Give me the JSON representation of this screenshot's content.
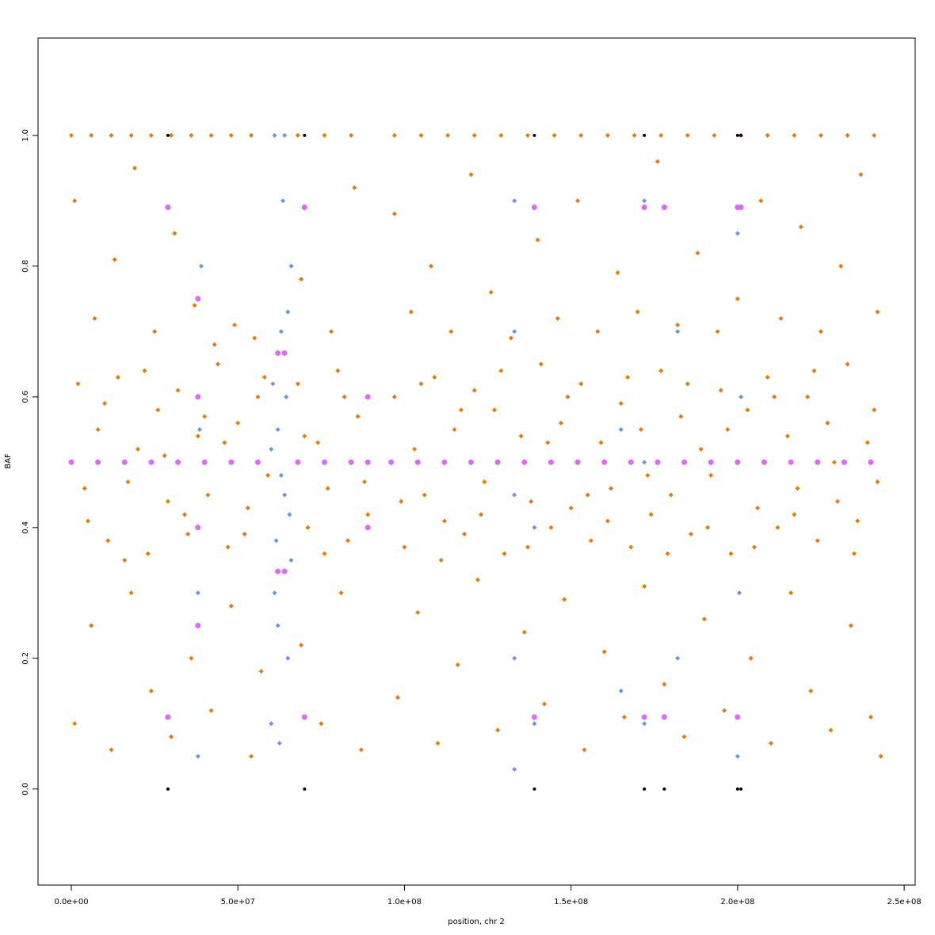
{
  "chart_data": {
    "type": "scatter",
    "xlabel": "position, chr 2",
    "ylabel": "BAF",
    "xlim": [
      -10000000.0,
      253300000.0
    ],
    "ylim": [
      -0.147,
      1.149
    ],
    "xticks": [
      {
        "value": 0,
        "label": "0.0e+00"
      },
      {
        "value": 50000000.0,
        "label": "5.0e+07"
      },
      {
        "value": 100000000.0,
        "label": "1.0e+08"
      },
      {
        "value": 150000000.0,
        "label": "1.5e+08"
      },
      {
        "value": 200000000.0,
        "label": "2.0e+08"
      },
      {
        "value": 250000000.0,
        "label": "2.5e+08"
      }
    ],
    "yticks": [
      {
        "value": 0,
        "label": "0.0"
      },
      0.2,
      0.4,
      0.6,
      0.8,
      {
        "value": 1,
        "label": "1.0"
      }
    ],
    "series": [
      {
        "color": "#ee7600",
        "marker": "diamond",
        "x": [
          2000000.0,
          5000000.0,
          8000000.0,
          11000000.0,
          14000000.0,
          17000000.0,
          20000000.0,
          23000000.0,
          26000000.0,
          29000000.0,
          32000000.0,
          35000000.0,
          38000000.0,
          41000000.0,
          44000000.0,
          47000000.0,
          50000000.0,
          53000000.0,
          56000000.0,
          59000000.0,
          68000000.0,
          71000000.0,
          74000000.0,
          77000000.0,
          80000000.0,
          83000000.0,
          86000000.0,
          89000000.0,
          97000000.0,
          100000000.0,
          103000000.0,
          106000000.0,
          109000000.0,
          112000000.0,
          115000000.0,
          118000000.0,
          121000000.0,
          124000000.0,
          127000000.0,
          130000000.0,
          135000000.0,
          138000000.0,
          141000000.0,
          144000000.0,
          147000000.0,
          150000000.0,
          153000000.0,
          156000000.0,
          159000000.0,
          162000000.0,
          165000000.0,
          168000000.0,
          171000000.0,
          174000000.0,
          177000000.0,
          180000000.0,
          183000000.0,
          186000000.0,
          189000000.0,
          192000000.0,
          195000000.0,
          198000000.0,
          203000000.0,
          206000000.0,
          209000000.0,
          212000000.0,
          215000000.0,
          218000000.0,
          221000000.0,
          224000000.0,
          227000000.0,
          230000000.0,
          233000000.0,
          236000000.0,
          239000000.0,
          242000000.0,
          4000000.0,
          10000000.0,
          16000000.0,
          22000000.0,
          28000000.0,
          34000000.0,
          40000000.0,
          46000000.0,
          52000000.0,
          58000000.0,
          70000000.0,
          76000000.0,
          82000000.0,
          88000000.0,
          99000000.0,
          105000000.0,
          111000000.0,
          117000000.0,
          123000000.0,
          129000000.0,
          137000000.0,
          143000000.0,
          149000000.0,
          155000000.0,
          161000000.0,
          167000000.0,
          173000000.0,
          179000000.0,
          185000000.0,
          191000000.0,
          197000000.0,
          205000000.0,
          211000000.0,
          217000000.0,
          223000000.0,
          229000000.0,
          235000000.0,
          241000000.0,
          1000000.0,
          6000000.0,
          12000000.0,
          18000000.0,
          24000000.0,
          30000000.0,
          36000000.0,
          42000000.0,
          48000000.0,
          54000000.0,
          57000000.0,
          69000000.0,
          75000000.0,
          81000000.0,
          87000000.0,
          98000000.0,
          104000000.0,
          110000000.0,
          116000000.0,
          122000000.0,
          128000000.0,
          136000000.0,
          142000000.0,
          148000000.0,
          154000000.0,
          160000000.0,
          166000000.0,
          172000000.0,
          178000000.0,
          184000000.0,
          190000000.0,
          196000000.0,
          204000000.0,
          210000000.0,
          216000000.0,
          222000000.0,
          228000000.0,
          234000000.0,
          240000000.0,
          243000000.0,
          1000000.0,
          7000000.0,
          13000000.0,
          19000000.0,
          25000000.0,
          31000000.0,
          37000000.0,
          43000000.0,
          49000000.0,
          55000000.0,
          69000000.0,
          78000000.0,
          85000000.0,
          97000000.0,
          102000000.0,
          108000000.0,
          114000000.0,
          120000000.0,
          126000000.0,
          132000000.0,
          140000000.0,
          146000000.0,
          152000000.0,
          158000000.0,
          164000000.0,
          170000000.0,
          176000000.0,
          182000000.0,
          188000000.0,
          194000000.0,
          200000000.0,
          207000000.0,
          213000000.0,
          219000000.0,
          225000000.0,
          231000000.0,
          237000000.0,
          242000000.0,
          0,
          6000000.0,
          12000000.0,
          18000000.0,
          24000000.0,
          30000000.0,
          36000000.0,
          42000000.0,
          48000000.0,
          54000000.0,
          68000000.0,
          76000000.0,
          84000000.0,
          97000000.0,
          105000000.0,
          113000000.0,
          121000000.0,
          129000000.0,
          137000000.0,
          145000000.0,
          153000000.0,
          161000000.0,
          169000000.0,
          177000000.0,
          185000000.0,
          193000000.0,
          201000000.0,
          209000000.0,
          217000000.0,
          225000000.0,
          233000000.0,
          241000000.0
        ],
        "y": [
          0.62,
          0.41,
          0.55,
          0.38,
          0.63,
          0.47,
          0.52,
          0.36,
          0.58,
          0.44,
          0.61,
          0.39,
          0.54,
          0.45,
          0.65,
          0.37,
          0.56,
          0.43,
          0.6,
          0.48,
          0.62,
          0.4,
          0.53,
          0.46,
          0.64,
          0.38,
          0.57,
          0.42,
          0.6,
          0.37,
          0.52,
          0.45,
          0.63,
          0.41,
          0.55,
          0.39,
          0.61,
          0.47,
          0.58,
          0.36,
          0.54,
          0.44,
          0.65,
          0.4,
          0.56,
          0.43,
          0.62,
          0.38,
          0.53,
          0.46,
          0.59,
          0.37,
          0.55,
          0.42,
          0.64,
          0.45,
          0.57,
          0.39,
          0.52,
          0.48,
          0.61,
          0.36,
          0.58,
          0.43,
          0.63,
          0.4,
          0.54,
          0.46,
          0.6,
          0.38,
          0.56,
          0.44,
          0.65,
          0.41,
          0.53,
          0.47,
          0.46,
          0.59,
          0.35,
          0.64,
          0.51,
          0.42,
          0.57,
          0.53,
          0.39,
          0.63,
          0.54,
          0.36,
          0.6,
          0.47,
          0.44,
          0.62,
          0.35,
          0.58,
          0.42,
          0.64,
          0.37,
          0.53,
          0.6,
          0.45,
          0.41,
          0.63,
          0.48,
          0.36,
          0.62,
          0.4,
          0.55,
          0.37,
          0.6,
          0.42,
          0.64,
          0.5,
          0.36,
          0.58,
          0.1,
          0.25,
          0.06,
          0.3,
          0.15,
          0.08,
          0.2,
          0.12,
          0.28,
          0.05,
          0.18,
          0.22,
          0.1,
          0.3,
          0.06,
          0.14,
          0.27,
          0.07,
          0.19,
          0.32,
          0.09,
          0.24,
          0.13,
          0.29,
          0.06,
          0.21,
          0.11,
          0.31,
          0.16,
          0.08,
          0.26,
          0.12,
          0.2,
          0.07,
          0.3,
          0.15,
          0.09,
          0.25,
          0.11,
          0.05,
          0.9,
          0.72,
          0.81,
          0.95,
          0.7,
          0.85,
          0.74,
          0.68,
          0.71,
          0.69,
          0.78,
          0.7,
          0.92,
          0.88,
          0.73,
          0.8,
          0.7,
          0.94,
          0.76,
          0.69,
          0.84,
          0.72,
          0.9,
          0.7,
          0.79,
          0.73,
          0.96,
          0.71,
          0.82,
          0.7,
          0.75,
          0.9,
          0.72,
          0.86,
          0.7,
          0.8,
          0.94,
          0.73,
          1,
          1,
          1,
          1,
          1,
          1,
          1,
          1,
          1,
          1,
          1,
          1,
          1,
          1,
          1,
          1,
          1,
          1,
          1,
          1,
          1,
          1,
          1,
          1,
          1,
          1,
          1,
          1,
          1,
          1,
          1,
          1
        ]
      },
      {
        "color": "#6495ed",
        "marker": "diamond",
        "x": [
          60000000.0,
          61000000.0,
          62000000.0,
          63000000.0,
          64000000.0,
          65000000.0,
          66000000.0,
          60500000.0,
          61500000.0,
          62500000.0,
          63500000.0,
          64500000.0,
          65500000.0,
          61000000.0,
          64000000.0,
          62000000.0,
          63000000.0,
          65000000.0,
          60000000.0,
          66000000.0,
          38000000.0,
          38000000.0,
          38500000.0,
          39000000.0,
          133000000.0,
          133000000.0,
          133000000.0,
          133000000.0,
          133000000.0,
          200000000.0,
          200500000.0,
          201000000.0,
          200000000.0,
          172000000.0,
          172000000.0,
          172000000.0,
          139000000.0,
          139000000.0,
          182000000.0,
          182000000.0,
          165000000.0,
          165000000.0
        ],
        "y": [
          0.1,
          0.3,
          0.55,
          0.7,
          0.45,
          0.2,
          0.8,
          0.62,
          0.38,
          0.07,
          0.9,
          0.6,
          0.42,
          1,
          1,
          0.25,
          0.48,
          0.73,
          0.52,
          0.35,
          0.05,
          0.3,
          0.55,
          0.8,
          0.03,
          0.2,
          0.45,
          0.7,
          0.9,
          0.05,
          0.3,
          0.6,
          0.85,
          0.1,
          0.5,
          0.9,
          0.1,
          0.4,
          0.2,
          0.7,
          0.15,
          0.55
        ]
      },
      {
        "color": "#e066ff",
        "marker": "circle",
        "x": [
          0,
          8000000.0,
          16000000.0,
          24000000.0,
          32000000.0,
          40000000.0,
          48000000.0,
          56000000.0,
          68000000.0,
          76000000.0,
          84000000.0,
          89000000.0,
          96000000.0,
          104000000.0,
          112000000.0,
          120000000.0,
          128000000.0,
          136000000.0,
          144000000.0,
          152000000.0,
          160000000.0,
          168000000.0,
          176000000.0,
          184000000.0,
          192000000.0,
          200000000.0,
          208000000.0,
          216000000.0,
          224000000.0,
          232000000.0,
          240000000.0,
          29000000.0,
          29000000.0,
          38000000.0,
          38000000.0,
          38000000.0,
          38000000.0,
          62000000.0,
          64000000.0,
          62000000.0,
          64000000.0,
          70000000.0,
          70000000.0,
          89000000.0,
          89000000.0,
          139000000.0,
          139000000.0,
          172000000.0,
          172000000.0,
          178000000.0,
          178000000.0,
          200000000.0,
          201000000.0,
          200000000.0
        ],
        "y": [
          0.5,
          0.5,
          0.5,
          0.5,
          0.5,
          0.5,
          0.5,
          0.5,
          0.5,
          0.5,
          0.5,
          0.5,
          0.5,
          0.5,
          0.5,
          0.5,
          0.5,
          0.5,
          0.5,
          0.5,
          0.5,
          0.5,
          0.5,
          0.5,
          0.5,
          0.5,
          0.5,
          0.5,
          0.5,
          0.5,
          0.5,
          0.89,
          0.11,
          0.75,
          0.25,
          0.6,
          0.4,
          0.667,
          0.667,
          0.333,
          0.333,
          0.89,
          0.11,
          0.6,
          0.4,
          0.89,
          0.11,
          0.89,
          0.11,
          0.89,
          0.11,
          0.89,
          0.89,
          0.11
        ]
      },
      {
        "color": "#000000",
        "marker": "circle",
        "x": [
          29000000.0,
          70000000.0,
          139000000.0,
          172000000.0,
          178000000.0,
          200000000.0,
          201000000.0,
          29000000.0,
          70000000.0,
          139000000.0,
          172000000.0,
          200000000.0,
          201000000.0
        ],
        "y": [
          0,
          0,
          0,
          0,
          0,
          0,
          0,
          1,
          1,
          1,
          1,
          1,
          1
        ]
      }
    ]
  }
}
